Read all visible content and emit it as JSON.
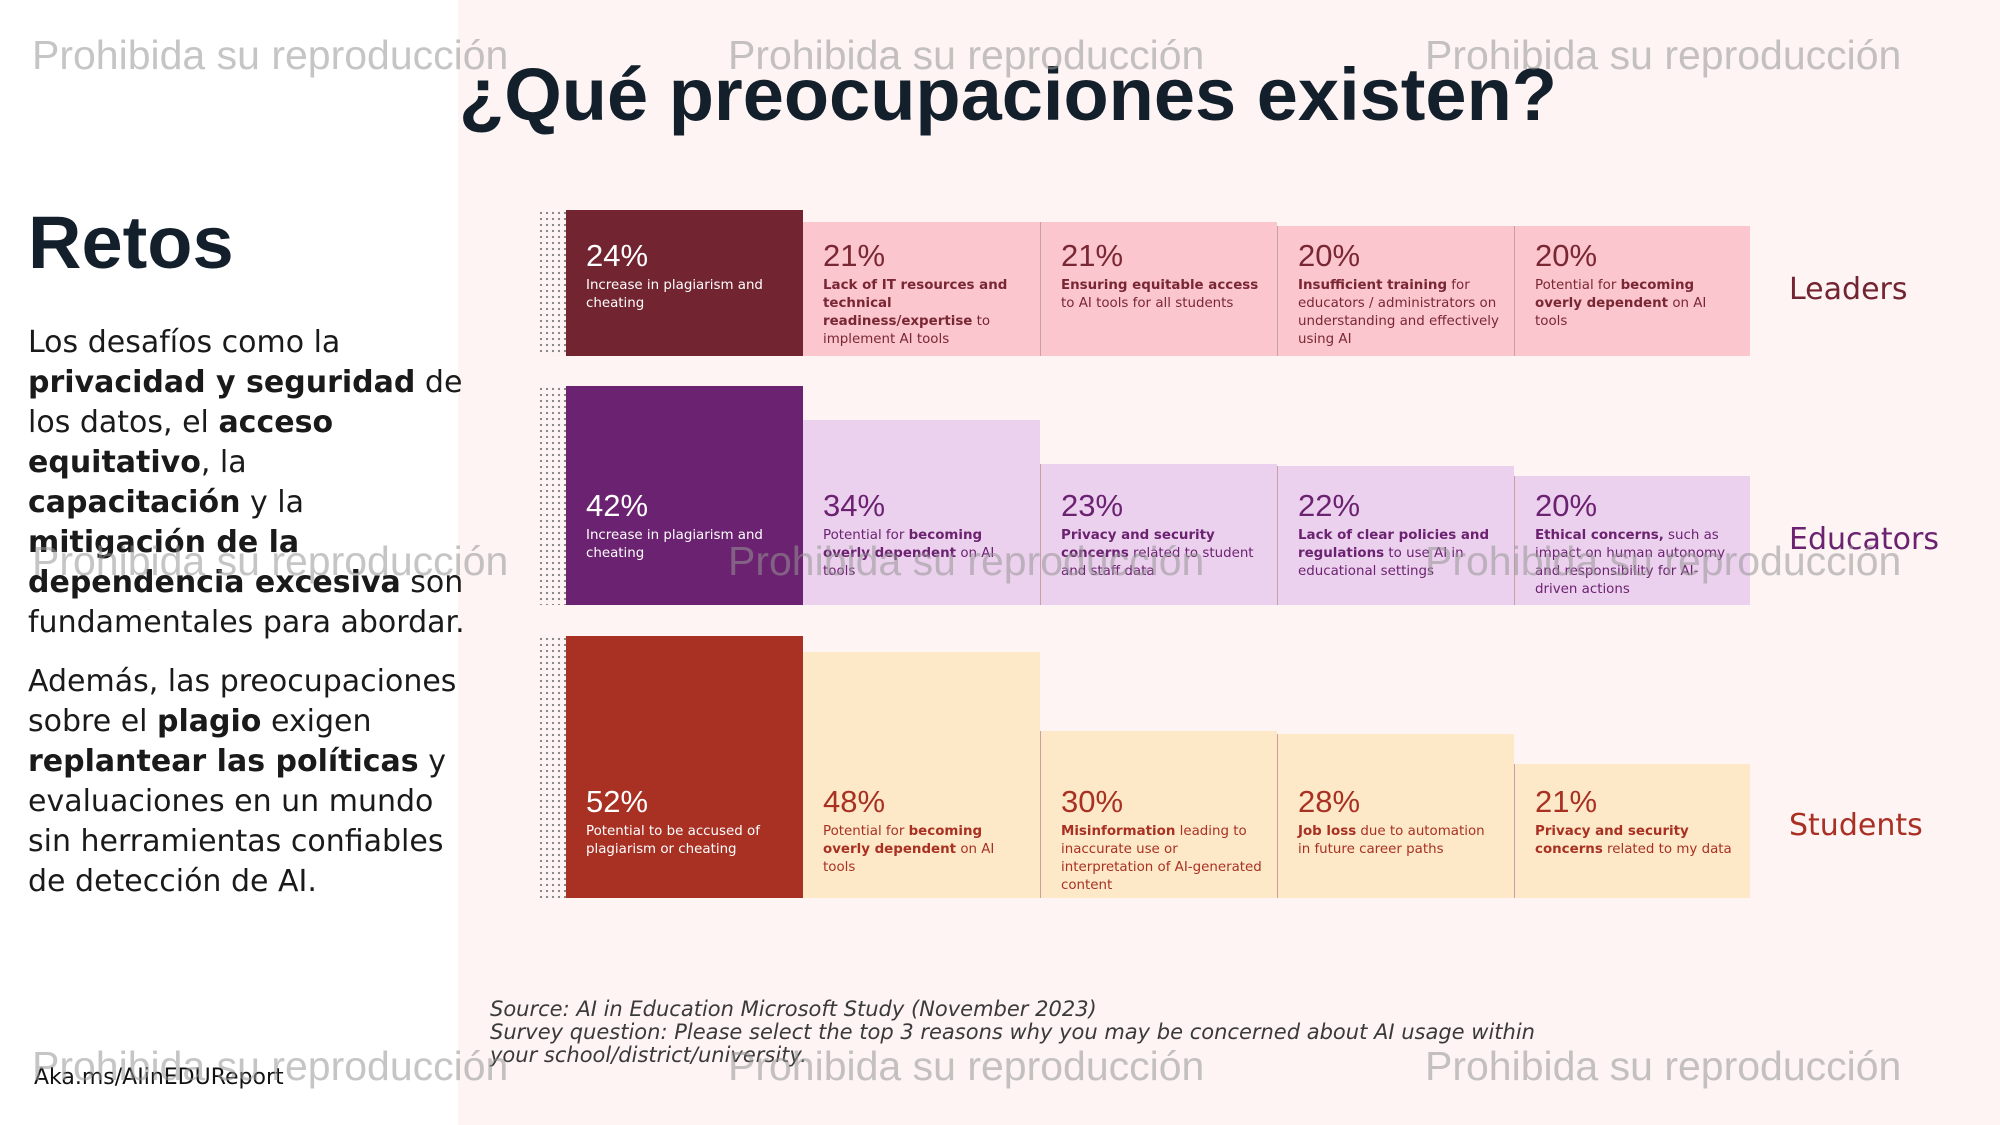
{
  "title": "¿Qué preocupaciones existen?",
  "left": {
    "heading": "Retos",
    "p1": [
      {
        "t": "Los desafíos como la ",
        "b": false
      },
      {
        "t": "privacidad y seguridad",
        "b": true
      },
      {
        "t": " de los datos, el ",
        "b": false
      },
      {
        "t": "acceso equitativo",
        "b": true
      },
      {
        "t": ", la ",
        "b": false
      },
      {
        "t": "capacitación",
        "b": true
      },
      {
        "t": " y la ",
        "b": false
      },
      {
        "t": "mitigación de la dependencia excesiva",
        "b": true
      },
      {
        "t": " son fundamentales para abordar.",
        "b": false
      }
    ],
    "p2": [
      {
        "t": "Además, las preocupaciones sobre el ",
        "b": false
      },
      {
        "t": "plagio",
        "b": true
      },
      {
        "t": " exigen ",
        "b": false
      },
      {
        "t": "replantear las políticas",
        "b": true
      },
      {
        "t": " y evaluaciones en un mundo sin herramientas confiables de detección de AI.",
        "b": false
      }
    ],
    "link": "Aka.ms/AIinEDUReport"
  },
  "source": {
    "line1": "Source: AI in Education Microsoft Study (November 2023)",
    "line2": "Survey question: Please select the top 3 reasons why you may be concerned about AI usage within",
    "line3": "your school/district/university."
  },
  "watermark": "Prohibida su reproducción",
  "colors": {
    "leaders_dark": "#722431",
    "leaders_light": "#fbc6ce",
    "educators_dark": "#6b2270",
    "educators_light": "#ecd1ee",
    "students_dark": "#a83124",
    "students_light": "#fde9c7"
  },
  "rows": [
    {
      "label": "Leaders",
      "items": [
        {
          "pct": "24%",
          "value": 24,
          "desc": [
            {
              "t": "Increase in plagiarism and cheating",
              "b": false
            }
          ]
        },
        {
          "pct": "21%",
          "value": 21,
          "desc": [
            {
              "t": "Lack of IT resources and technical readiness/expertise",
              "b": true
            },
            {
              "t": " to implement AI tools",
              "b": false
            }
          ]
        },
        {
          "pct": "21%",
          "value": 21,
          "desc": [
            {
              "t": "Ensuring equitable access",
              "b": true
            },
            {
              "t": " to AI tools for all students",
              "b": false
            }
          ]
        },
        {
          "pct": "20%",
          "value": 20,
          "desc": [
            {
              "t": "Insufficient training",
              "b": true
            },
            {
              "t": " for educators / administrators on understanding and effectively using AI",
              "b": false
            }
          ]
        },
        {
          "pct": "20%",
          "value": 20,
          "desc": [
            {
              "t": "Potential for ",
              "b": false
            },
            {
              "t": "becoming overly dependent",
              "b": true
            },
            {
              "t": " on AI tools",
              "b": false
            }
          ]
        }
      ]
    },
    {
      "label": "Educators",
      "items": [
        {
          "pct": "42%",
          "value": 42,
          "desc": [
            {
              "t": "Increase in plagiarism and cheating",
              "b": false
            }
          ]
        },
        {
          "pct": "34%",
          "value": 34,
          "desc": [
            {
              "t": "Potential for ",
              "b": false
            },
            {
              "t": "becoming overly dependent",
              "b": true
            },
            {
              "t": " on AI tools",
              "b": false
            }
          ]
        },
        {
          "pct": "23%",
          "value": 23,
          "desc": [
            {
              "t": "Privacy and security concerns",
              "b": true
            },
            {
              "t": " related to student and staff data",
              "b": false
            }
          ]
        },
        {
          "pct": "22%",
          "value": 22,
          "desc": [
            {
              "t": "Lack of clear policies and regulations",
              "b": true
            },
            {
              "t": " to use AI in educational settings",
              "b": false
            }
          ]
        },
        {
          "pct": "20%",
          "value": 20,
          "desc": [
            {
              "t": "Ethical concerns,",
              "b": true
            },
            {
              "t": " such as impact on human autonomy and responsibility for AI-driven actions",
              "b": false
            }
          ]
        }
      ]
    },
    {
      "label": "Students",
      "items": [
        {
          "pct": "52%",
          "value": 52,
          "desc": [
            {
              "t": "Potential to be accused of plagiarism or cheating",
              "b": false
            }
          ]
        },
        {
          "pct": "48%",
          "value": 48,
          "desc": [
            {
              "t": "Potential for ",
              "b": false
            },
            {
              "t": "becoming overly dependent",
              "b": true
            },
            {
              "t": " on AI tools",
              "b": false
            }
          ]
        },
        {
          "pct": "30%",
          "value": 30,
          "desc": [
            {
              "t": "Misinformation",
              "b": true
            },
            {
              "t": " leading to inaccurate use or interpretation of AI-generated content",
              "b": false
            }
          ]
        },
        {
          "pct": "28%",
          "value": 28,
          "desc": [
            {
              "t": "Job loss",
              "b": true
            },
            {
              "t": " due to automation in future career paths",
              "b": false
            }
          ]
        },
        {
          "pct": "21%",
          "value": 21,
          "desc": [
            {
              "t": "Privacy and security concerns",
              "b": true
            },
            {
              "t": " related to my data",
              "b": false
            }
          ]
        }
      ]
    }
  ]
}
